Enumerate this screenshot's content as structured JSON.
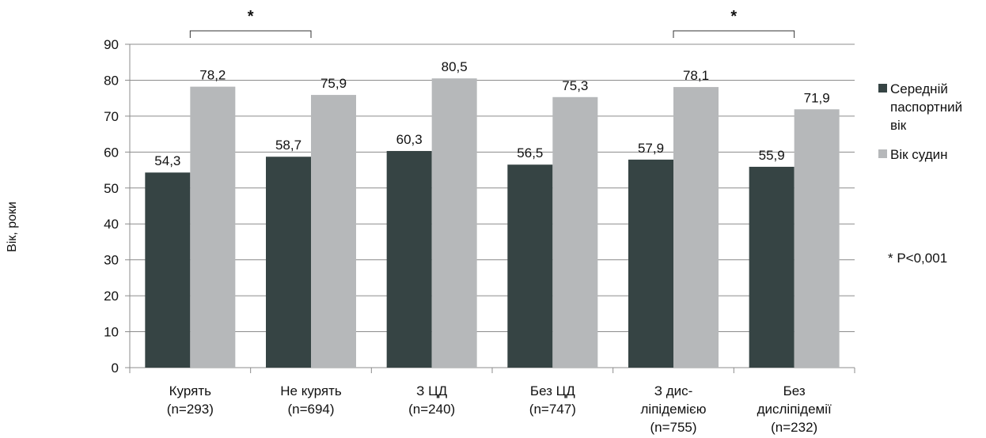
{
  "chart_data": {
    "type": "bar",
    "title": "",
    "ylabel": "Вік, роки",
    "xlabel": "",
    "ylim": [
      0,
      90
    ],
    "yticks": [
      0,
      10,
      20,
      30,
      40,
      50,
      60,
      70,
      80,
      90
    ],
    "grid": true,
    "categories": [
      [
        "Курять",
        "(n=293)"
      ],
      [
        "Не курять",
        "(n=694)"
      ],
      [
        "З ЦД",
        "(n=240)"
      ],
      [
        "Без ЦД",
        "(n=747)"
      ],
      [
        "З дис-",
        "ліпідемією",
        "(n=755)"
      ],
      [
        "Без",
        "дисліпідемії",
        "(n=232)"
      ]
    ],
    "series": [
      {
        "name": "Середній паспортний вік",
        "color": "#364444",
        "values": [
          54.3,
          58.7,
          60.3,
          56.5,
          57.9,
          55.9
        ],
        "labels": [
          "54,3",
          "58,7",
          "60,3",
          "56,5",
          "57,9",
          "55,9"
        ]
      },
      {
        "name": "Вік судин",
        "color": "#b6b8ba",
        "values": [
          78.2,
          75.9,
          80.5,
          75.3,
          78.1,
          71.9
        ],
        "labels": [
          "78,2",
          "75,9",
          "80,5",
          "75,3",
          "78,1",
          "71,9"
        ]
      }
    ],
    "legend": {
      "position": "right",
      "items": [
        {
          "lines": [
            "Середній",
            "паспортний",
            "вік"
          ],
          "color": "#364444"
        },
        {
          "lines": [
            "Вік судин"
          ],
          "color": "#b6b8ba"
        }
      ]
    },
    "significance": [
      {
        "from": 0,
        "to": 1,
        "mark": "*"
      },
      {
        "from": 4,
        "to": 5,
        "mark": "*"
      }
    ],
    "footnote": "* P<0,001"
  }
}
